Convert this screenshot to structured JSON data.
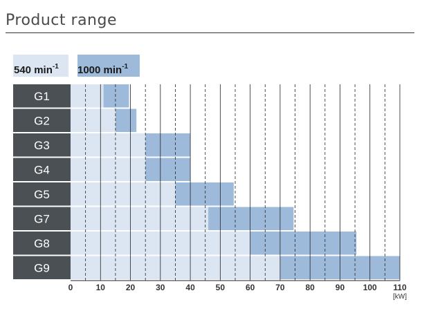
{
  "page": {
    "title": "Product range"
  },
  "legend": [
    {
      "name": "540 min",
      "superscript": "-1",
      "color": "#dce6f2"
    },
    {
      "name": "1000 min",
      "superscript": "-1",
      "color": "#9ebadb"
    }
  ],
  "chart_data": {
    "type": "bar",
    "orientation": "horizontal",
    "title": "",
    "xlabel": "",
    "x_unit": "[kW]",
    "xlim": [
      0,
      110
    ],
    "ticks": [
      0,
      10,
      20,
      30,
      40,
      50,
      60,
      70,
      80,
      90,
      100,
      110
    ],
    "tick_labels": [
      "0",
      "10",
      "20",
      "30",
      "40",
      "50",
      "60",
      "70",
      "80",
      "90",
      "100",
      "110"
    ],
    "categories": [
      "G1",
      "G2",
      "G3",
      "G4",
      "G5",
      "G7",
      "G8",
      "G9"
    ],
    "series": [
      {
        "name": "540 min-1",
        "color": "#dce6f2",
        "ranges": [
          [
            0,
            11
          ],
          [
            0,
            15
          ],
          [
            0,
            25
          ],
          [
            0,
            25
          ],
          [
            0,
            35
          ],
          [
            0,
            46
          ],
          [
            0,
            60
          ],
          [
            0,
            70
          ]
        ]
      },
      {
        "name": "1000 min-1",
        "color": "#9ebadb",
        "ranges": [
          [
            11,
            19.5
          ],
          [
            15,
            22
          ],
          [
            25,
            40
          ],
          [
            25,
            40
          ],
          [
            35,
            54.5
          ],
          [
            46,
            74.5
          ],
          [
            60,
            95.5
          ],
          [
            70,
            110
          ]
        ]
      }
    ],
    "grid": {
      "solid_every": 10,
      "dashed_every": 5
    },
    "colors": {
      "category_box": "#4b5055",
      "category_text": "#ffffff",
      "grid": "#222222"
    }
  }
}
